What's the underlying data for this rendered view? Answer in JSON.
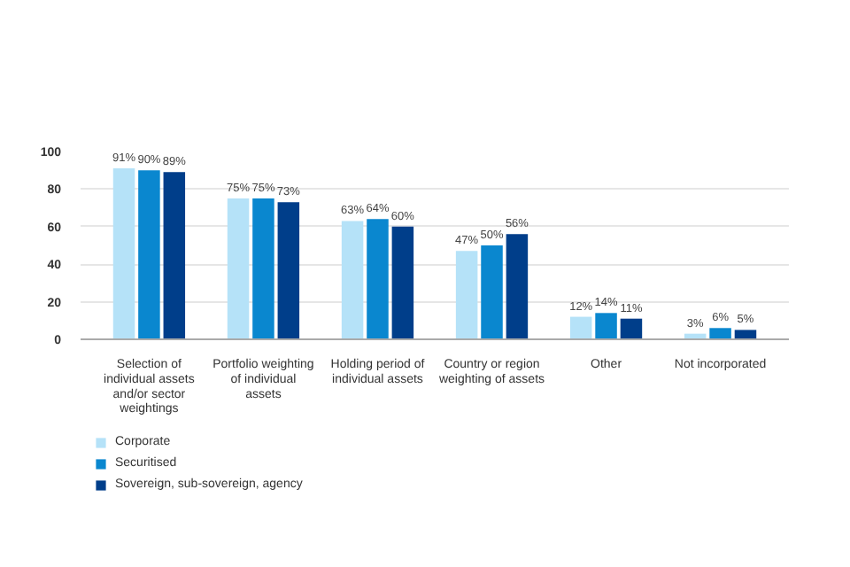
{
  "chart_data": {
    "type": "bar",
    "categories": [
      "Selection of individual assets and/or sector weightings",
      "Portfolio weighting of individual assets",
      "Holding period of individual assets",
      "Country or region weighting of assets",
      "Other",
      "Not incorporated"
    ],
    "series": [
      {
        "name": "Corporate",
        "color": "#b5e2f8",
        "values": [
          91,
          75,
          63,
          47,
          12,
          3
        ],
        "value_labels": [
          "91%",
          "75%",
          "63%",
          "47%",
          "12%",
          "3%"
        ]
      },
      {
        "name": "Securitised",
        "color": "#0a87cf",
        "values": [
          90,
          75,
          64,
          50,
          14,
          6
        ],
        "value_labels": [
          "90%",
          "75%",
          "64%",
          "50%",
          "14%",
          "6%"
        ]
      },
      {
        "name": "Sovereign, sub-sovereign, agency",
        "color": "#003e8a",
        "values": [
          89,
          73,
          60,
          56,
          11,
          5
        ],
        "value_labels": [
          "89%",
          "73%",
          "60%",
          "56%",
          "11%",
          "5%"
        ]
      }
    ],
    "ylim": [
      0,
      100
    ],
    "yticks": [
      0,
      20,
      40,
      60,
      80,
      100
    ],
    "grid": "y",
    "legend": "bottom left"
  }
}
